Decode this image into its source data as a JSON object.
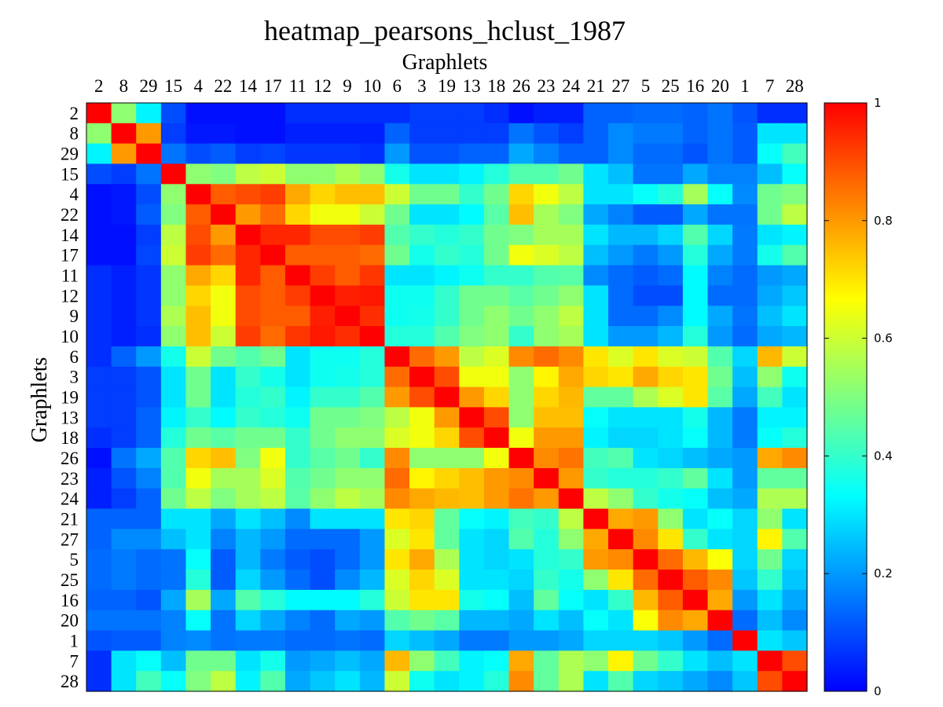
{
  "chart_data": {
    "type": "heatmap",
    "title": "heatmap_pearsons_hclust_1987",
    "xlabel": "Graphlets",
    "ylabel": "Graphlets",
    "labels": [
      "2",
      "8",
      "29",
      "15",
      "4",
      "22",
      "14",
      "17",
      "11",
      "12",
      "9",
      "10",
      "6",
      "3",
      "19",
      "13",
      "18",
      "26",
      "23",
      "24",
      "21",
      "27",
      "5",
      "25",
      "16",
      "20",
      "1",
      "7",
      "28"
    ],
    "color_range": [
      0,
      1
    ],
    "colorbar_ticks": [
      "0",
      "0.2",
      "0.4",
      "0.6",
      "0.8",
      "1"
    ],
    "colorbar_tick_values": [
      0,
      0.2,
      0.4,
      0.6,
      0.8,
      1
    ],
    "colormap": "jet",
    "colormap_stops": [
      "#0000ff",
      "#00ffff",
      "#ffff00",
      "#ff0000"
    ],
    "matrix": [
      [
        1.0,
        0.52,
        0.32,
        0.1,
        0.02,
        0.02,
        0.02,
        0.02,
        0.06,
        0.06,
        0.06,
        0.06,
        0.06,
        0.08,
        0.08,
        0.08,
        0.06,
        0.02,
        0.04,
        0.04,
        0.13,
        0.13,
        0.14,
        0.14,
        0.13,
        0.15,
        0.11,
        0.06,
        0.06
      ],
      [
        0.52,
        1.0,
        0.8,
        0.08,
        0.03,
        0.03,
        0.02,
        0.02,
        0.04,
        0.04,
        0.04,
        0.04,
        0.13,
        0.08,
        0.08,
        0.08,
        0.08,
        0.15,
        0.11,
        0.08,
        0.13,
        0.18,
        0.16,
        0.16,
        0.13,
        0.15,
        0.12,
        0.3,
        0.3
      ],
      [
        0.32,
        0.8,
        1.0,
        0.15,
        0.1,
        0.12,
        0.08,
        0.09,
        0.07,
        0.07,
        0.07,
        0.06,
        0.2,
        0.11,
        0.11,
        0.13,
        0.13,
        0.22,
        0.17,
        0.13,
        0.13,
        0.18,
        0.14,
        0.14,
        0.11,
        0.15,
        0.12,
        0.34,
        0.42
      ],
      [
        0.1,
        0.08,
        0.15,
        1.0,
        0.52,
        0.5,
        0.58,
        0.6,
        0.52,
        0.52,
        0.56,
        0.52,
        0.36,
        0.3,
        0.3,
        0.32,
        0.38,
        0.44,
        0.44,
        0.48,
        0.3,
        0.25,
        0.15,
        0.15,
        0.22,
        0.17,
        0.17,
        0.25,
        0.34
      ],
      [
        0.02,
        0.03,
        0.1,
        0.52,
        1.0,
        0.88,
        0.9,
        0.92,
        0.78,
        0.72,
        0.75,
        0.75,
        0.6,
        0.48,
        0.48,
        0.4,
        0.48,
        0.72,
        0.65,
        0.58,
        0.3,
        0.3,
        0.34,
        0.38,
        0.55,
        0.34,
        0.18,
        0.48,
        0.5
      ],
      [
        0.02,
        0.03,
        0.12,
        0.5,
        0.88,
        1.0,
        0.8,
        0.86,
        0.72,
        0.65,
        0.65,
        0.6,
        0.48,
        0.3,
        0.3,
        0.33,
        0.45,
        0.75,
        0.55,
        0.5,
        0.22,
        0.17,
        0.12,
        0.12,
        0.22,
        0.15,
        0.15,
        0.48,
        0.58
      ],
      [
        0.02,
        0.02,
        0.08,
        0.58,
        0.9,
        0.8,
        1.0,
        0.95,
        0.95,
        0.9,
        0.9,
        0.92,
        0.44,
        0.4,
        0.38,
        0.4,
        0.48,
        0.5,
        0.55,
        0.55,
        0.3,
        0.24,
        0.24,
        0.28,
        0.44,
        0.28,
        0.16,
        0.3,
        0.32
      ],
      [
        0.02,
        0.02,
        0.09,
        0.6,
        0.92,
        0.86,
        0.95,
        1.0,
        0.88,
        0.88,
        0.88,
        0.86,
        0.48,
        0.36,
        0.4,
        0.38,
        0.48,
        0.65,
        0.62,
        0.58,
        0.25,
        0.2,
        0.16,
        0.2,
        0.38,
        0.22,
        0.16,
        0.36,
        0.44
      ],
      [
        0.06,
        0.04,
        0.07,
        0.52,
        0.78,
        0.72,
        0.95,
        0.88,
        1.0,
        0.92,
        0.88,
        0.93,
        0.3,
        0.3,
        0.32,
        0.35,
        0.4,
        0.4,
        0.44,
        0.45,
        0.18,
        0.14,
        0.12,
        0.14,
        0.33,
        0.17,
        0.14,
        0.2,
        0.22
      ],
      [
        0.06,
        0.04,
        0.07,
        0.52,
        0.72,
        0.65,
        0.9,
        0.88,
        0.92,
        1.0,
        0.96,
        0.97,
        0.35,
        0.35,
        0.4,
        0.48,
        0.48,
        0.45,
        0.48,
        0.52,
        0.3,
        0.14,
        0.1,
        0.1,
        0.33,
        0.14,
        0.14,
        0.22,
        0.26
      ],
      [
        0.06,
        0.04,
        0.07,
        0.56,
        0.75,
        0.65,
        0.9,
        0.88,
        0.88,
        0.96,
        1.0,
        0.94,
        0.35,
        0.36,
        0.4,
        0.48,
        0.52,
        0.48,
        0.52,
        0.58,
        0.3,
        0.14,
        0.14,
        0.18,
        0.33,
        0.22,
        0.15,
        0.25,
        0.3
      ],
      [
        0.06,
        0.04,
        0.06,
        0.52,
        0.75,
        0.6,
        0.92,
        0.86,
        0.93,
        0.97,
        0.94,
        1.0,
        0.38,
        0.38,
        0.44,
        0.5,
        0.52,
        0.4,
        0.52,
        0.55,
        0.3,
        0.2,
        0.2,
        0.24,
        0.38,
        0.2,
        0.14,
        0.22,
        0.24
      ],
      [
        0.06,
        0.13,
        0.2,
        0.36,
        0.6,
        0.48,
        0.44,
        0.48,
        0.3,
        0.35,
        0.35,
        0.38,
        1.0,
        0.86,
        0.8,
        0.58,
        0.62,
        0.82,
        0.86,
        0.82,
        0.7,
        0.62,
        0.7,
        0.62,
        0.6,
        0.44,
        0.28,
        0.76,
        0.6
      ],
      [
        0.08,
        0.08,
        0.11,
        0.3,
        0.48,
        0.3,
        0.4,
        0.36,
        0.3,
        0.35,
        0.36,
        0.38,
        0.86,
        1.0,
        0.9,
        0.65,
        0.65,
        0.52,
        0.68,
        0.78,
        0.72,
        0.7,
        0.78,
        0.72,
        0.7,
        0.48,
        0.25,
        0.52,
        0.35
      ],
      [
        0.08,
        0.08,
        0.11,
        0.3,
        0.48,
        0.3,
        0.38,
        0.4,
        0.32,
        0.4,
        0.4,
        0.44,
        0.8,
        0.9,
        1.0,
        0.8,
        0.72,
        0.52,
        0.72,
        0.76,
        0.46,
        0.46,
        0.56,
        0.62,
        0.7,
        0.45,
        0.22,
        0.42,
        0.3
      ],
      [
        0.08,
        0.08,
        0.13,
        0.32,
        0.4,
        0.33,
        0.4,
        0.38,
        0.35,
        0.48,
        0.48,
        0.5,
        0.58,
        0.65,
        0.8,
        1.0,
        0.9,
        0.52,
        0.75,
        0.75,
        0.34,
        0.3,
        0.3,
        0.3,
        0.36,
        0.24,
        0.16,
        0.32,
        0.32
      ],
      [
        0.06,
        0.08,
        0.13,
        0.38,
        0.48,
        0.45,
        0.48,
        0.48,
        0.4,
        0.48,
        0.52,
        0.52,
        0.62,
        0.65,
        0.72,
        0.9,
        1.0,
        0.65,
        0.8,
        0.8,
        0.32,
        0.28,
        0.28,
        0.3,
        0.34,
        0.24,
        0.16,
        0.34,
        0.38
      ],
      [
        0.02,
        0.15,
        0.22,
        0.44,
        0.72,
        0.75,
        0.5,
        0.65,
        0.4,
        0.45,
        0.48,
        0.4,
        0.82,
        0.52,
        0.52,
        0.52,
        0.65,
        1.0,
        0.82,
        0.85,
        0.42,
        0.44,
        0.3,
        0.28,
        0.25,
        0.22,
        0.2,
        0.78,
        0.82
      ],
      [
        0.04,
        0.11,
        0.17,
        0.44,
        0.65,
        0.55,
        0.55,
        0.62,
        0.44,
        0.48,
        0.52,
        0.52,
        0.86,
        0.68,
        0.72,
        0.75,
        0.8,
        0.82,
        1.0,
        0.8,
        0.4,
        0.38,
        0.38,
        0.4,
        0.46,
        0.3,
        0.2,
        0.46,
        0.46
      ],
      [
        0.04,
        0.08,
        0.13,
        0.48,
        0.58,
        0.5,
        0.55,
        0.58,
        0.45,
        0.52,
        0.58,
        0.55,
        0.82,
        0.78,
        0.76,
        0.75,
        0.8,
        0.85,
        0.8,
        1.0,
        0.58,
        0.52,
        0.4,
        0.36,
        0.34,
        0.25,
        0.22,
        0.56,
        0.56
      ],
      [
        0.13,
        0.13,
        0.13,
        0.3,
        0.3,
        0.22,
        0.3,
        0.25,
        0.18,
        0.3,
        0.3,
        0.3,
        0.7,
        0.72,
        0.46,
        0.34,
        0.32,
        0.42,
        0.4,
        0.58,
        1.0,
        0.78,
        0.8,
        0.52,
        0.3,
        0.34,
        0.28,
        0.52,
        0.3
      ],
      [
        0.13,
        0.18,
        0.18,
        0.25,
        0.3,
        0.17,
        0.24,
        0.2,
        0.14,
        0.14,
        0.14,
        0.2,
        0.62,
        0.7,
        0.46,
        0.3,
        0.28,
        0.44,
        0.38,
        0.52,
        0.78,
        1.0,
        0.82,
        0.7,
        0.4,
        0.3,
        0.28,
        0.68,
        0.44
      ],
      [
        0.14,
        0.16,
        0.14,
        0.15,
        0.34,
        0.12,
        0.24,
        0.16,
        0.12,
        0.1,
        0.14,
        0.2,
        0.7,
        0.78,
        0.56,
        0.3,
        0.28,
        0.3,
        0.38,
        0.4,
        0.8,
        0.82,
        1.0,
        0.86,
        0.76,
        0.66,
        0.28,
        0.48,
        0.28
      ],
      [
        0.14,
        0.16,
        0.14,
        0.15,
        0.38,
        0.12,
        0.28,
        0.2,
        0.14,
        0.1,
        0.18,
        0.24,
        0.62,
        0.72,
        0.62,
        0.3,
        0.3,
        0.28,
        0.4,
        0.36,
        0.52,
        0.7,
        0.86,
        1.0,
        0.88,
        0.82,
        0.26,
        0.4,
        0.26
      ],
      [
        0.13,
        0.13,
        0.11,
        0.22,
        0.55,
        0.22,
        0.44,
        0.38,
        0.33,
        0.33,
        0.33,
        0.38,
        0.6,
        0.7,
        0.7,
        0.36,
        0.34,
        0.25,
        0.46,
        0.34,
        0.3,
        0.4,
        0.76,
        0.88,
        1.0,
        0.78,
        0.2,
        0.3,
        0.22
      ],
      [
        0.15,
        0.15,
        0.15,
        0.17,
        0.34,
        0.15,
        0.28,
        0.22,
        0.17,
        0.14,
        0.22,
        0.2,
        0.44,
        0.48,
        0.45,
        0.24,
        0.24,
        0.22,
        0.3,
        0.25,
        0.34,
        0.3,
        0.66,
        0.82,
        0.78,
        1.0,
        0.14,
        0.25,
        0.18
      ],
      [
        0.11,
        0.12,
        0.12,
        0.17,
        0.18,
        0.15,
        0.16,
        0.16,
        0.14,
        0.14,
        0.15,
        0.14,
        0.28,
        0.25,
        0.22,
        0.16,
        0.16,
        0.2,
        0.2,
        0.22,
        0.28,
        0.28,
        0.28,
        0.26,
        0.2,
        0.14,
        1.0,
        0.3,
        0.26
      ],
      [
        0.06,
        0.3,
        0.34,
        0.25,
        0.48,
        0.48,
        0.3,
        0.36,
        0.2,
        0.22,
        0.25,
        0.22,
        0.76,
        0.52,
        0.42,
        0.32,
        0.34,
        0.78,
        0.46,
        0.56,
        0.52,
        0.68,
        0.48,
        0.4,
        0.3,
        0.25,
        0.3,
        1.0,
        0.9
      ],
      [
        0.06,
        0.3,
        0.42,
        0.34,
        0.5,
        0.58,
        0.32,
        0.44,
        0.22,
        0.26,
        0.3,
        0.24,
        0.6,
        0.35,
        0.3,
        0.32,
        0.38,
        0.82,
        0.46,
        0.56,
        0.3,
        0.44,
        0.28,
        0.26,
        0.22,
        0.18,
        0.26,
        0.9,
        1.0
      ]
    ]
  }
}
